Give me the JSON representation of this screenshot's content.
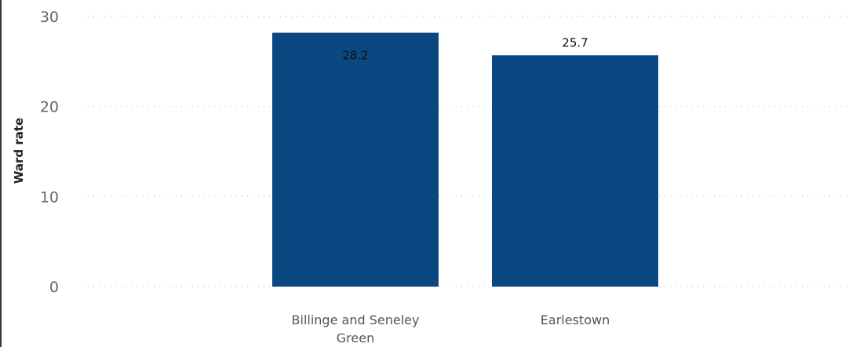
{
  "chart_data": {
    "type": "bar",
    "categories": [
      "Billinge and Seneley Green",
      "Earlestown"
    ],
    "values": [
      28.2,
      25.7
    ],
    "data_labels": [
      "28.2",
      "25.7"
    ],
    "title": "",
    "xlabel": "",
    "ylabel": "Ward rate",
    "ylim": [
      0,
      30
    ],
    "yticks": [
      0,
      10,
      20,
      30
    ],
    "ytick_labels": [
      "0",
      "10",
      "20",
      "30"
    ],
    "grid": true,
    "bar_color": "#0B4780",
    "legend": "none"
  }
}
